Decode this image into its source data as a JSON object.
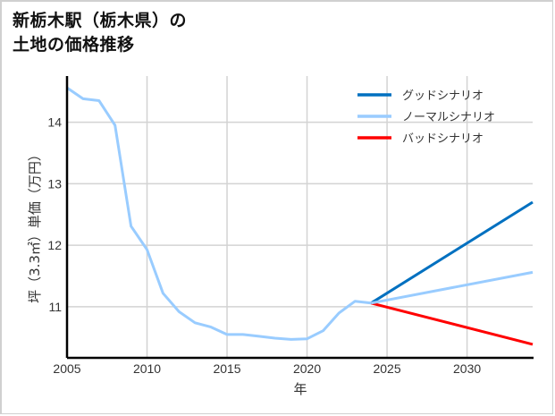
{
  "title": {
    "line1": "新栃木駅（栃木県）の",
    "line2": "土地の価格推移"
  },
  "axes": {
    "xlabel": "年",
    "ylabel": "坪（3.3㎡）単価（万円）",
    "xticks": [
      "2005",
      "2010",
      "2015",
      "2020",
      "2025",
      "2030"
    ],
    "yticks": [
      "11",
      "12",
      "13",
      "14"
    ]
  },
  "legend": {
    "items": [
      {
        "label": "グッドシナリオ",
        "color": "#0070c0"
      },
      {
        "label": "ノーマルシナリオ",
        "color": "#99ccff"
      },
      {
        "label": "バッドシナリオ",
        "color": "#ff0000"
      }
    ]
  },
  "chart_data": {
    "type": "line",
    "title": "新栃木駅（栃木県）の土地の価格推移",
    "xlabel": "年",
    "ylabel": "坪（3.3㎡）単価（万円）",
    "xlim": [
      2005,
      2034.1
    ],
    "ylim": [
      10.17,
      14.75
    ],
    "grid": true,
    "legend_position": "upper right",
    "x_ticks": [
      2005,
      2010,
      2015,
      2020,
      2025,
      2030
    ],
    "y_ticks": [
      11,
      12,
      13,
      14
    ],
    "series": [
      {
        "name": "ノーマルシナリオ (実績)",
        "color": "#99ccff",
        "x": [
          2005,
          2006,
          2007,
          2008,
          2009,
          2010,
          2011,
          2012,
          2013,
          2014,
          2015,
          2016,
          2017,
          2018,
          2019,
          2020,
          2021,
          2022,
          2023,
          2024
        ],
        "values": [
          14.56,
          14.38,
          14.35,
          13.95,
          12.31,
          11.93,
          11.22,
          10.92,
          10.74,
          10.67,
          10.55,
          10.55,
          10.52,
          10.49,
          10.47,
          10.48,
          10.61,
          10.9,
          11.09,
          11.06
        ]
      },
      {
        "name": "グッドシナリオ",
        "color": "#0070c0",
        "x": [
          2024,
          2034.1
        ],
        "values": [
          11.06,
          12.7
        ]
      },
      {
        "name": "ノーマルシナリオ",
        "color": "#99ccff",
        "x": [
          2024,
          2034.1
        ],
        "values": [
          11.06,
          11.56
        ]
      },
      {
        "name": "バッドシナリオ",
        "color": "#ff0000",
        "x": [
          2024,
          2034.1
        ],
        "values": [
          11.06,
          10.39
        ]
      }
    ]
  }
}
